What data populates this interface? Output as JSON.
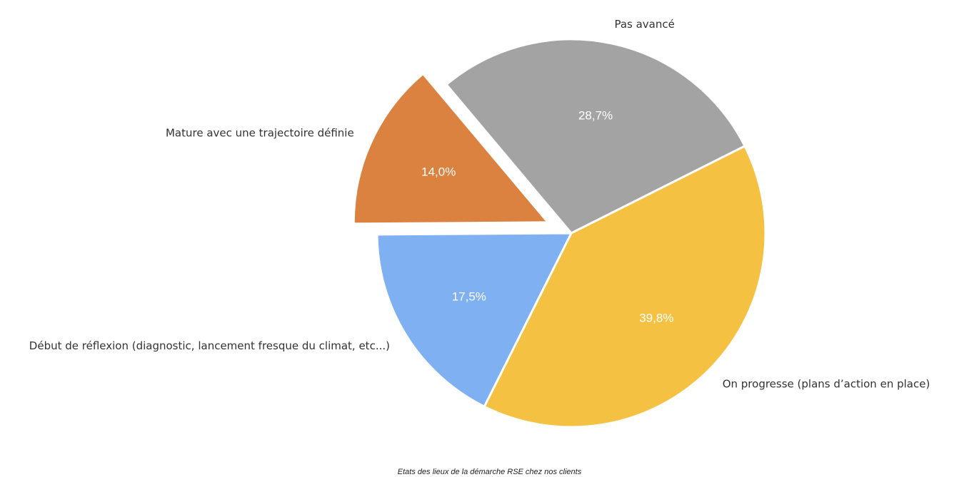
{
  "chart_data": {
    "type": "pie",
    "title": "",
    "caption": "Etats des lieux de la démarche RSE chez nos clients",
    "slices": [
      {
        "label": "Pas avancé",
        "value": 28.7,
        "value_label": "28,7%",
        "color": "#a3a3a3",
        "exploded": false
      },
      {
        "label": "On progresse (plans d’action en place)",
        "value": 39.8,
        "value_label": "39,8%",
        "color": "#f4c142",
        "exploded": false
      },
      {
        "label": "Début de réflexion (diagnostic, lancement fresque du climat, etc...)",
        "value": 17.5,
        "value_label": "17,5%",
        "color": "#7fb1f2",
        "exploded": false
      },
      {
        "label": "Mature avec une trajectoire définie",
        "value": 14.0,
        "value_label": "14,0%",
        "color": "#dc8240",
        "exploded": true
      }
    ],
    "legend": "none",
    "start_angle_deg": 230,
    "direction": "clockwise"
  }
}
